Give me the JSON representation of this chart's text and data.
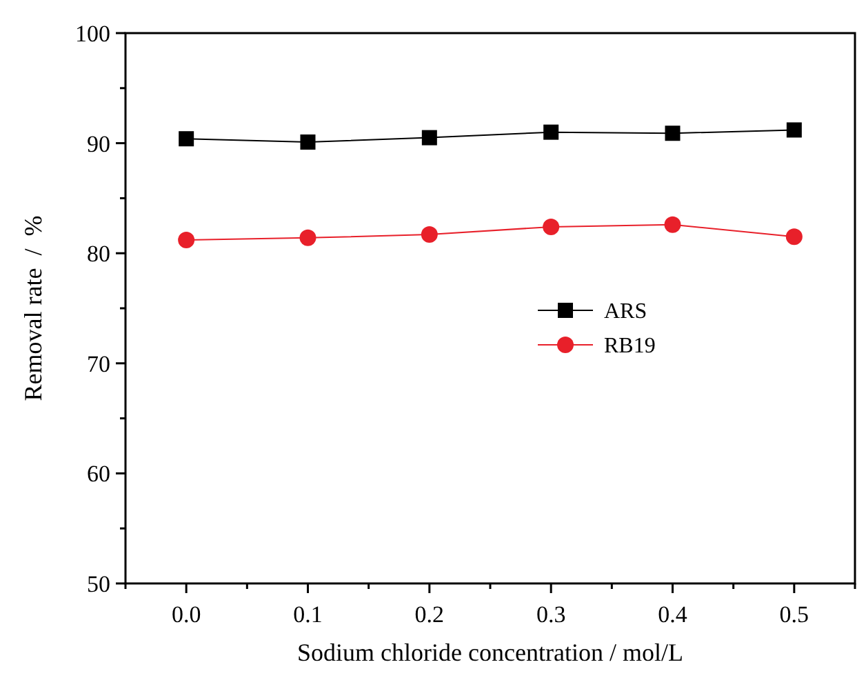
{
  "chart_data": {
    "type": "line",
    "xlabel": "Sodium chloride concentration / mol/L",
    "ylabel": "Removal rate  /  %",
    "x": [
      0,
      0.1,
      0.2,
      0.3,
      0.4,
      0.5
    ],
    "series": [
      {
        "name": "ARS",
        "color": "#000000",
        "marker": "square",
        "values": [
          90.4,
          90.1,
          90.5,
          91.0,
          90.9,
          91.2
        ]
      },
      {
        "name": "RB19",
        "color": "#e8202a",
        "marker": "circle",
        "values": [
          81.2,
          81.4,
          81.7,
          82.4,
          82.6,
          81.5
        ]
      }
    ],
    "xlim": [
      -0.05,
      0.55
    ],
    "xticks": [
      {
        "value": -0.05,
        "label": null
      },
      "0.0",
      {
        "value": 0.05,
        "label": null
      },
      0.1,
      {
        "value": 0.15,
        "label": null
      },
      0.2,
      {
        "value": 0.25,
        "label": null
      },
      0.3,
      {
        "value": 0.35,
        "label": null
      },
      0.4,
      {
        "value": 0.45,
        "label": null
      },
      0.5,
      {
        "value": 0.55,
        "label": null
      }
    ],
    "ylim": [
      50,
      100
    ],
    "yticks": [
      50,
      {
        "value": 55,
        "label": null
      },
      60,
      {
        "value": 65,
        "label": null
      },
      70,
      {
        "value": 75,
        "label": null
      },
      80,
      {
        "value": 85,
        "label": null
      },
      90,
      {
        "value": 95,
        "label": null
      },
      100
    ],
    "legend": "right"
  }
}
